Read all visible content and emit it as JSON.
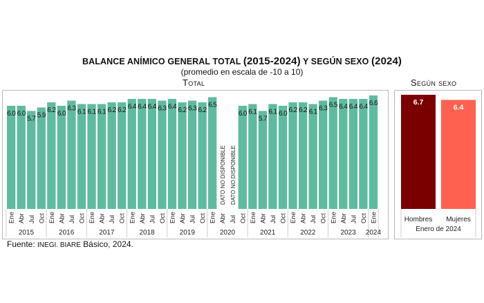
{
  "title": {
    "part1": "BALANCE ANÍMICO GENERAL TOTAL ",
    "part2": "(2015-2024)",
    "part3": " Y SEGÚN SEXO ",
    "part4": "(2024)"
  },
  "subtitle": "(promedio en escala de -10 a 10)",
  "source": {
    "prefix": "Fuente: ",
    "org": "INEGI. BIARE",
    "suffix": " Básico, 2024."
  },
  "colors": {
    "total_bar": "#5fbb9f",
    "hombres": "#7a0000",
    "mujeres": "#ff6150",
    "frame": "#b8b8b8"
  },
  "chart_data": [
    {
      "type": "bar",
      "title": "Total",
      "unavailable_label": "DATO NO DISPONIBLE",
      "ylim": [
        0,
        7
      ],
      "grid": false,
      "years": [
        "2015",
        "2016",
        "2017",
        "2018",
        "2019",
        "2020",
        "2021",
        "2022",
        "2023",
        "2024"
      ],
      "categories": [
        {
          "year": "2015",
          "month": "Ene",
          "value": 6.0
        },
        {
          "year": "2015",
          "month": "Abr",
          "value": 6.0
        },
        {
          "year": "2015",
          "month": "Jul",
          "value": 5.7
        },
        {
          "year": "2015",
          "month": "Oct",
          "value": 5.9
        },
        {
          "year": "2016",
          "month": "Ene",
          "value": 6.2
        },
        {
          "year": "2016",
          "month": "Abr",
          "value": 6.0
        },
        {
          "year": "2016",
          "month": "Jul",
          "value": 6.3
        },
        {
          "year": "2016",
          "month": "Oct",
          "value": 6.1
        },
        {
          "year": "2017",
          "month": "Ene",
          "value": 6.1
        },
        {
          "year": "2017",
          "month": "Abr",
          "value": 6.1
        },
        {
          "year": "2017",
          "month": "Jul",
          "value": 6.2
        },
        {
          "year": "2017",
          "month": "Oct",
          "value": 6.2
        },
        {
          "year": "2018",
          "month": "Ene",
          "value": 6.4
        },
        {
          "year": "2018",
          "month": "Abr",
          "value": 6.4
        },
        {
          "year": "2018",
          "month": "Jul",
          "value": 6.4
        },
        {
          "year": "2018",
          "month": "Oct",
          "value": 6.3
        },
        {
          "year": "2019",
          "month": "Ene",
          "value": 6.4
        },
        {
          "year": "2019",
          "month": "Abr",
          "value": 6.2
        },
        {
          "year": "2019",
          "month": "Jul",
          "value": 6.3
        },
        {
          "year": "2019",
          "month": "Oct",
          "value": 6.2
        },
        {
          "year": "2020",
          "month": "Ene",
          "value": 6.5
        },
        {
          "year": "2020",
          "month": "Abr",
          "value": null
        },
        {
          "year": "2020",
          "month": "Jul",
          "value": null
        },
        {
          "year": "2020",
          "month": "Oct",
          "value": 6.0
        },
        {
          "year": "2021",
          "month": "Ene",
          "value": 6.1
        },
        {
          "year": "2021",
          "month": "Abr",
          "value": 5.7
        },
        {
          "year": "2021",
          "month": "Jul",
          "value": 6.1
        },
        {
          "year": "2021",
          "month": "Oct",
          "value": 6.0
        },
        {
          "year": "2022",
          "month": "Ene",
          "value": 6.2
        },
        {
          "year": "2022",
          "month": "Abr",
          "value": 6.2
        },
        {
          "year": "2022",
          "month": "Jul",
          "value": 6.1
        },
        {
          "year": "2022",
          "month": "Oct",
          "value": 6.3
        },
        {
          "year": "2023",
          "month": "Ene",
          "value": 6.5
        },
        {
          "year": "2023",
          "month": "Abr",
          "value": 6.4
        },
        {
          "year": "2023",
          "month": "Jul",
          "value": 6.4
        },
        {
          "year": "2023",
          "month": "Oct",
          "value": 6.4
        },
        {
          "year": "2024",
          "month": "Ene",
          "value": 6.6
        }
      ]
    },
    {
      "type": "bar",
      "title": "Según sexo",
      "xlabel": "Enero de 2024",
      "ylim": [
        0,
        7
      ],
      "categories": [
        "Hombres",
        "Mujeres"
      ],
      "values": [
        6.7,
        6.4
      ]
    }
  ]
}
